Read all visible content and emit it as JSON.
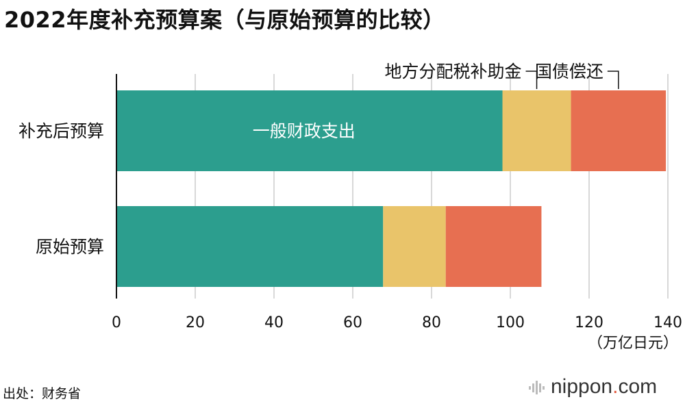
{
  "title": "2022年度补充预算案（与原始预算的比较）",
  "source": "出处：财务省",
  "brand": {
    "name": "nippon",
    "dot": ".",
    "tld": "com"
  },
  "colors": {
    "general": "#2c9e8e",
    "local": "#e9c46a",
    "bond": "#e76f51",
    "grid": "#cccccc",
    "axis": "#111111"
  },
  "chart_data": {
    "type": "bar",
    "orientation": "horizontal",
    "stacked": true,
    "categories": [
      "补充后预算",
      "原始预算"
    ],
    "series": [
      {
        "name": "一般财政支出",
        "values": [
          98,
          67.7
        ]
      },
      {
        "name": "地方分配税补助金",
        "values": [
          17.4,
          15.9
        ]
      },
      {
        "name": "国债偿还",
        "values": [
          24.1,
          24.3
        ]
      }
    ],
    "xlim": [
      0,
      140
    ],
    "xticks": [
      0,
      20,
      40,
      60,
      80,
      100,
      120,
      140
    ],
    "xunit": "（万亿日元）",
    "grid": true
  }
}
